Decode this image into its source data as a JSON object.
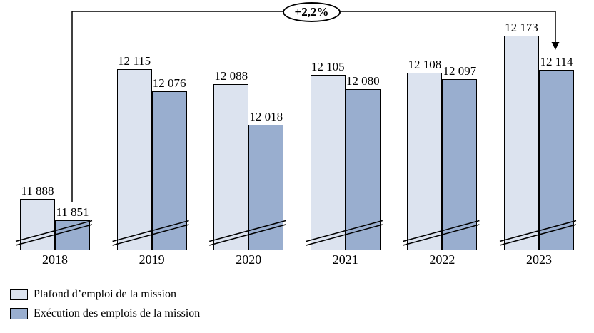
{
  "chart_data": {
    "type": "bar",
    "title": "",
    "categories": [
      "2018",
      "2019",
      "2020",
      "2021",
      "2022",
      "2023"
    ],
    "series": [
      {
        "name": "Plafond d’emploi de la mission",
        "color": "#dce3ef",
        "border_color": "#000000",
        "values": [
          11888,
          12115,
          12088,
          12105,
          12108,
          12173
        ]
      },
      {
        "name": "Exécution des emplois de la mission",
        "color": "#99aecf",
        "border_color": "#000000",
        "values": [
          11851,
          12076,
          12018,
          12080,
          12097,
          12114
        ]
      }
    ],
    "value_labels": {
      "shown": true,
      "thousands_separator": "space"
    },
    "annotation": {
      "text": "+2,2%",
      "from": {
        "category": "2018",
        "series": "Exécution des emplois de la mission"
      },
      "to": {
        "category": "2023",
        "series": "Exécution des emplois de la mission"
      }
    },
    "axis": {
      "broken_axis": true,
      "baseline_value": 11800,
      "ylim": [
        11800,
        12200
      ],
      "grid": false,
      "y_axis_shown": false
    },
    "legend_position": "bottom-left"
  }
}
